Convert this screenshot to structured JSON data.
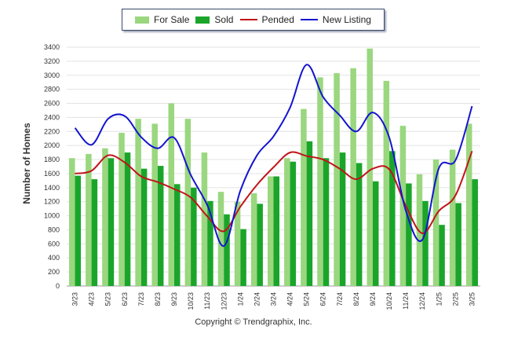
{
  "chart_data": {
    "type": "bar",
    "ylabel": "Number of Homes",
    "xlabel": "",
    "ylim": [
      0,
      3400
    ],
    "yticks": [
      0,
      200,
      400,
      600,
      800,
      1000,
      1200,
      1400,
      1600,
      1800,
      2000,
      2200,
      2400,
      2600,
      2800,
      3000,
      3200,
      3400
    ],
    "categories": [
      "3/23",
      "4/23",
      "5/23",
      "6/23",
      "7/23",
      "8/23",
      "9/23",
      "10/23",
      "11/23",
      "12/23",
      "1/24",
      "2/24",
      "3/24",
      "4/24",
      "5/24",
      "6/24",
      "7/24",
      "8/24",
      "9/24",
      "10/24",
      "11/24",
      "12/24",
      "1/25",
      "2/25",
      "3/25"
    ],
    "legend_position": "top-center",
    "grid": true,
    "series": [
      {
        "name": "For Sale",
        "kind": "bar",
        "color": "#9ad77f",
        "values": [
          1820,
          1880,
          1960,
          2180,
          2380,
          2310,
          2600,
          2380,
          1900,
          1340,
          1200,
          1320,
          1560,
          1820,
          2520,
          2970,
          3030,
          3100,
          3380,
          2920,
          2280,
          1590,
          1800,
          1940,
          2310
        ]
      },
      {
        "name": "Sold",
        "kind": "bar",
        "color": "#1aa52a",
        "values": [
          1570,
          1520,
          1820,
          1900,
          1670,
          1710,
          1450,
          1400,
          1210,
          1020,
          810,
          1170,
          1560,
          1770,
          2060,
          1820,
          1900,
          1750,
          1490,
          1920,
          1460,
          1210,
          870,
          1180,
          1520
        ]
      },
      {
        "name": "Pended",
        "kind": "line",
        "color": "#c0141a",
        "values": [
          1600,
          1640,
          1860,
          1760,
          1560,
          1480,
          1380,
          1260,
          990,
          780,
          1130,
          1440,
          1690,
          1900,
          1850,
          1800,
          1670,
          1520,
          1670,
          1660,
          1140,
          750,
          1070,
          1290,
          1920
        ]
      },
      {
        "name": "New Listing",
        "kind": "line",
        "color": "#1414d0",
        "values": [
          2250,
          2010,
          2380,
          2420,
          2120,
          1960,
          2110,
          1580,
          1150,
          570,
          1360,
          1860,
          2130,
          2540,
          3150,
          2690,
          2430,
          2200,
          2470,
          2110,
          1070,
          660,
          1680,
          1790,
          2560
        ]
      }
    ]
  },
  "copyright": "Copyright © Trendgraphix, Inc."
}
